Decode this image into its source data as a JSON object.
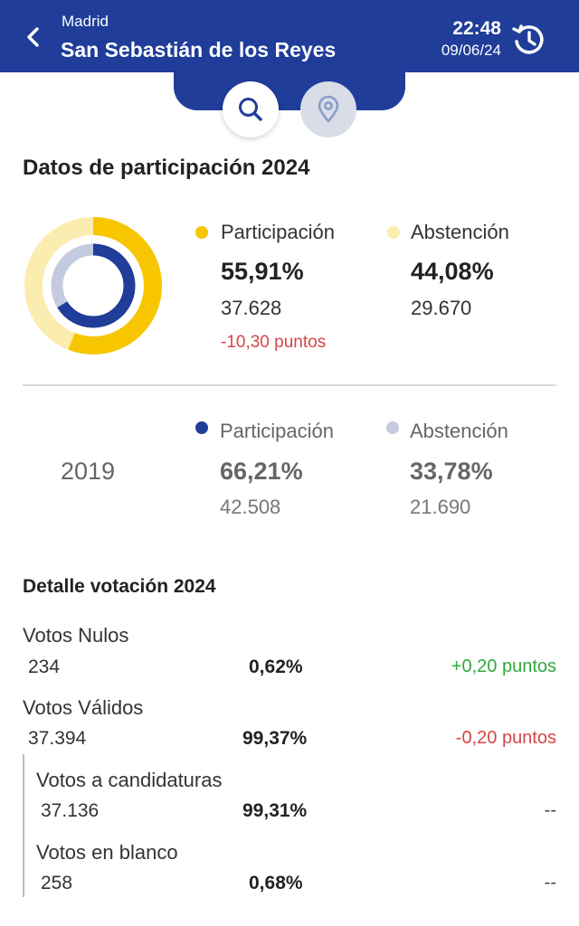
{
  "header": {
    "region": "Madrid",
    "city": "San Sebastián de los Reyes",
    "time": "22:48",
    "date": "09/06/24",
    "back_icon": "chevron-left-icon",
    "history_icon": "history-clock-icon",
    "background_color": "#1f3d99"
  },
  "tabs": [
    {
      "icon": "search-icon",
      "selected": true
    },
    {
      "icon": "map-pin-icon",
      "selected": false
    }
  ],
  "participation": {
    "title": "Datos de participación 2024",
    "current": {
      "participation_label": "Participación",
      "participation_pct": "55,91%",
      "participation_count": "37.628",
      "participation_delta": "-10,30 puntos",
      "abstention_label": "Abstención",
      "abstention_pct": "44,08%",
      "abstention_count": "29.670",
      "participation_color": "#f7c600",
      "abstention_color": "#fbecaf"
    },
    "previous": {
      "year": "2019",
      "participation_label": "Participación",
      "participation_pct": "66,21%",
      "participation_count": "42.508",
      "abstention_label": "Abstención",
      "abstention_pct": "33,78%",
      "abstention_count": "21.690",
      "participation_color": "#1f3d99",
      "abstention_color": "#c4cbe0"
    }
  },
  "detail": {
    "title": "Detalle votación 2024",
    "rows": [
      {
        "label": "Votos Nulos",
        "count": "234",
        "pct": "0,62%",
        "delta": "+0,20 puntos",
        "delta_color": "green"
      },
      {
        "label": "Votos Válidos",
        "count": "37.394",
        "pct": "99,37%",
        "delta": "-0,20 puntos",
        "delta_color": "red"
      },
      {
        "label": "Votos a candidaturas",
        "count": "37.136",
        "pct": "99,31%",
        "delta": "--",
        "delta_color": "neutral"
      },
      {
        "label": "Votos en blanco",
        "count": "258",
        "pct": "0,68%",
        "delta": "--",
        "delta_color": "neutral"
      }
    ]
  }
}
